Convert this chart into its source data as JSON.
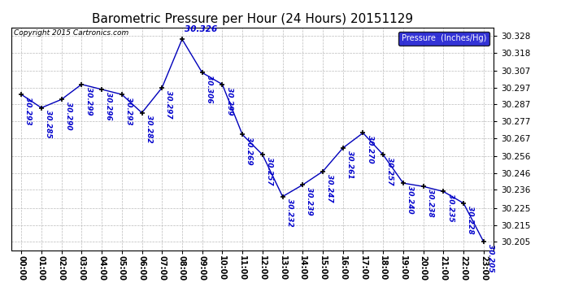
{
  "title": "Barometric Pressure per Hour (24 Hours) 20151129",
  "copyright": "Copyright 2015 Cartronics.com",
  "legend_label": "Pressure  (Inches/Hg)",
  "hours": [
    0,
    1,
    2,
    3,
    4,
    5,
    6,
    7,
    8,
    9,
    10,
    11,
    12,
    13,
    14,
    15,
    16,
    17,
    18,
    19,
    20,
    21,
    22,
    23
  ],
  "values": [
    30.293,
    30.285,
    30.29,
    30.299,
    30.296,
    30.293,
    30.282,
    30.297,
    30.326,
    30.306,
    30.299,
    30.269,
    30.257,
    30.232,
    30.239,
    30.247,
    30.261,
    30.27,
    30.257,
    30.24,
    30.238,
    30.235,
    30.228,
    30.205
  ],
  "annotations": [
    "30.293",
    "30.285",
    "30.290",
    "30.299",
    "30.296",
    "30.293",
    "30.282",
    "30.297",
    "30.326",
    "30.306",
    "30.299",
    "30.269",
    "30.257",
    "30.232",
    "30.239",
    "30.247",
    "30.261",
    "30.270",
    "30.257",
    "30.240",
    "30.238",
    "30.235",
    "30.228",
    "30.205"
  ],
  "x_labels": [
    "00:00",
    "01:00",
    "02:00",
    "03:00",
    "04:00",
    "05:00",
    "06:00",
    "07:00",
    "08:00",
    "09:00",
    "10:00",
    "11:00",
    "12:00",
    "13:00",
    "14:00",
    "15:00",
    "16:00",
    "17:00",
    "18:00",
    "19:00",
    "20:00",
    "21:00",
    "22:00",
    "23:00"
  ],
  "ylim": [
    30.2,
    30.333
  ],
  "yticks": [
    30.205,
    30.215,
    30.225,
    30.236,
    30.246,
    30.256,
    30.267,
    30.277,
    30.287,
    30.297,
    30.307,
    30.318,
    30.328
  ],
  "line_color": "#0000bb",
  "marker_color": "#000000",
  "bg_color": "#ffffff",
  "grid_color": "#bbbbbb",
  "title_color": "#000000",
  "label_color": "#0000cc",
  "legend_bg": "#0000cc",
  "legend_text": "#ffffff"
}
